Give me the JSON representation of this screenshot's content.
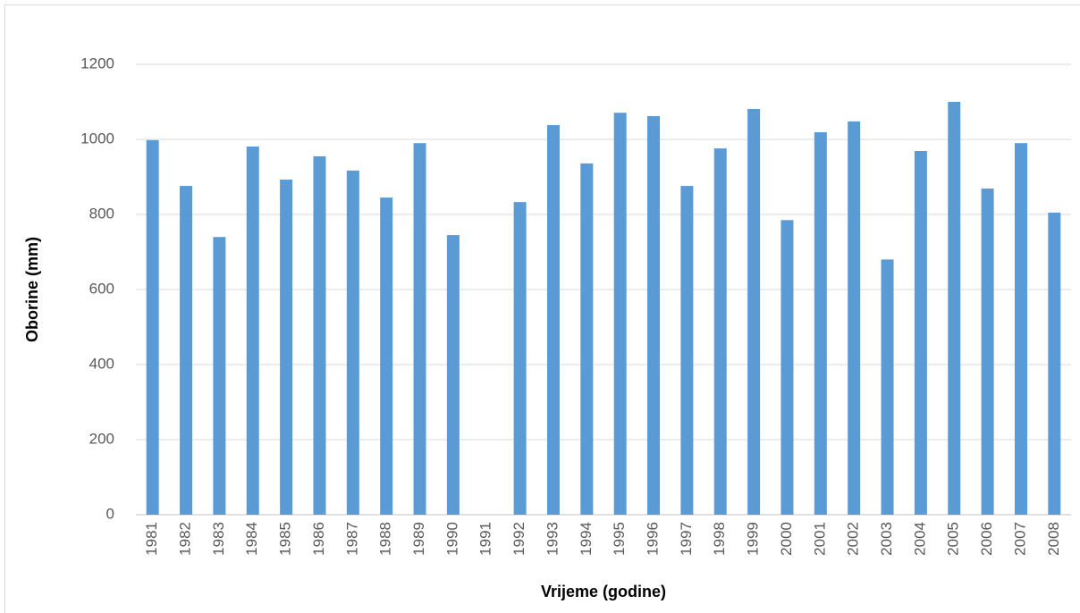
{
  "chart_data": {
    "type": "bar",
    "xlabel": "Vrijeme (godine)",
    "ylabel": "Oborine (mm)",
    "categories": [
      "1981",
      "1982",
      "1983",
      "1984",
      "1985",
      "1986",
      "1987",
      "1988",
      "1989",
      "1990",
      "1991",
      "1992",
      "1993",
      "1994",
      "1995",
      "1996",
      "1997",
      "1998",
      "1999",
      "2000",
      "2001",
      "2002",
      "2003",
      "2004",
      "2005",
      "2006",
      "2007",
      "2008"
    ],
    "values": [
      998,
      876,
      740,
      981,
      893,
      955,
      917,
      845,
      990,
      745,
      null,
      833,
      1038,
      936,
      1071,
      1062,
      876,
      976,
      1081,
      785,
      1019,
      1048,
      680,
      969,
      1100,
      869,
      990,
      805
    ],
    "color": "#5b9bd5",
    "ylim": [
      0,
      1200
    ],
    "yticks": [
      0,
      200,
      400,
      600,
      800,
      1000,
      1200
    ],
    "grid": true
  }
}
